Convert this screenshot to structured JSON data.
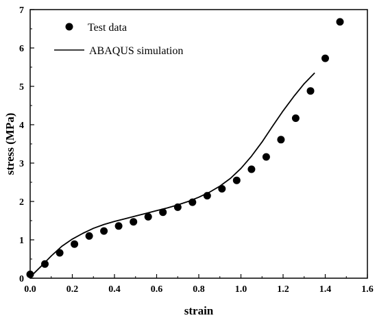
{
  "chart_data": {
    "type": "scatter",
    "xlabel": "strain",
    "ylabel": "stress (MPa)",
    "xlim": [
      0,
      1.6
    ],
    "ylim": [
      0,
      7
    ],
    "x_ticks": [
      0.0,
      0.2,
      0.4,
      0.6,
      0.8,
      1.0,
      1.2,
      1.4,
      1.6
    ],
    "x_tick_labels": [
      "0.0",
      "0.2",
      "0.4",
      "0.6",
      "0.8",
      "1.0",
      "1.2",
      "1.4",
      "1.6"
    ],
    "y_ticks": [
      0,
      1,
      2,
      3,
      4,
      5,
      6,
      7
    ],
    "y_tick_labels": [
      "0",
      "1",
      "2",
      "3",
      "4",
      "5",
      "6",
      "7"
    ],
    "grid": false,
    "legend_position": "top-left",
    "series": [
      {
        "name": "Test data",
        "kind": "scatter",
        "color": "#000000",
        "x": [
          0.0,
          0.07,
          0.14,
          0.21,
          0.28,
          0.35,
          0.42,
          0.49,
          0.56,
          0.63,
          0.7,
          0.77,
          0.84,
          0.91,
          0.98,
          1.05,
          1.12,
          1.19,
          1.26,
          1.33,
          1.4,
          1.47
        ],
        "y": [
          0.1,
          0.37,
          0.66,
          0.89,
          1.1,
          1.23,
          1.36,
          1.47,
          1.6,
          1.72,
          1.85,
          1.98,
          2.15,
          2.33,
          2.55,
          2.84,
          3.16,
          3.61,
          4.17,
          4.88,
          5.73,
          6.68
        ]
      },
      {
        "name": "ABAQUS simulation",
        "kind": "line",
        "color": "#000000",
        "x": [
          0.0,
          0.05,
          0.1,
          0.15,
          0.2,
          0.25,
          0.3,
          0.35,
          0.4,
          0.45,
          0.5,
          0.55,
          0.6,
          0.65,
          0.7,
          0.75,
          0.8,
          0.85,
          0.9,
          0.95,
          1.0,
          1.05,
          1.1,
          1.15,
          1.2,
          1.25,
          1.3,
          1.35
        ],
        "y": [
          0.03,
          0.3,
          0.58,
          0.83,
          1.02,
          1.17,
          1.3,
          1.4,
          1.48,
          1.55,
          1.62,
          1.69,
          1.76,
          1.83,
          1.91,
          2.0,
          2.11,
          2.24,
          2.4,
          2.6,
          2.86,
          3.18,
          3.55,
          3.96,
          4.36,
          4.73,
          5.07,
          5.35
        ]
      }
    ]
  }
}
